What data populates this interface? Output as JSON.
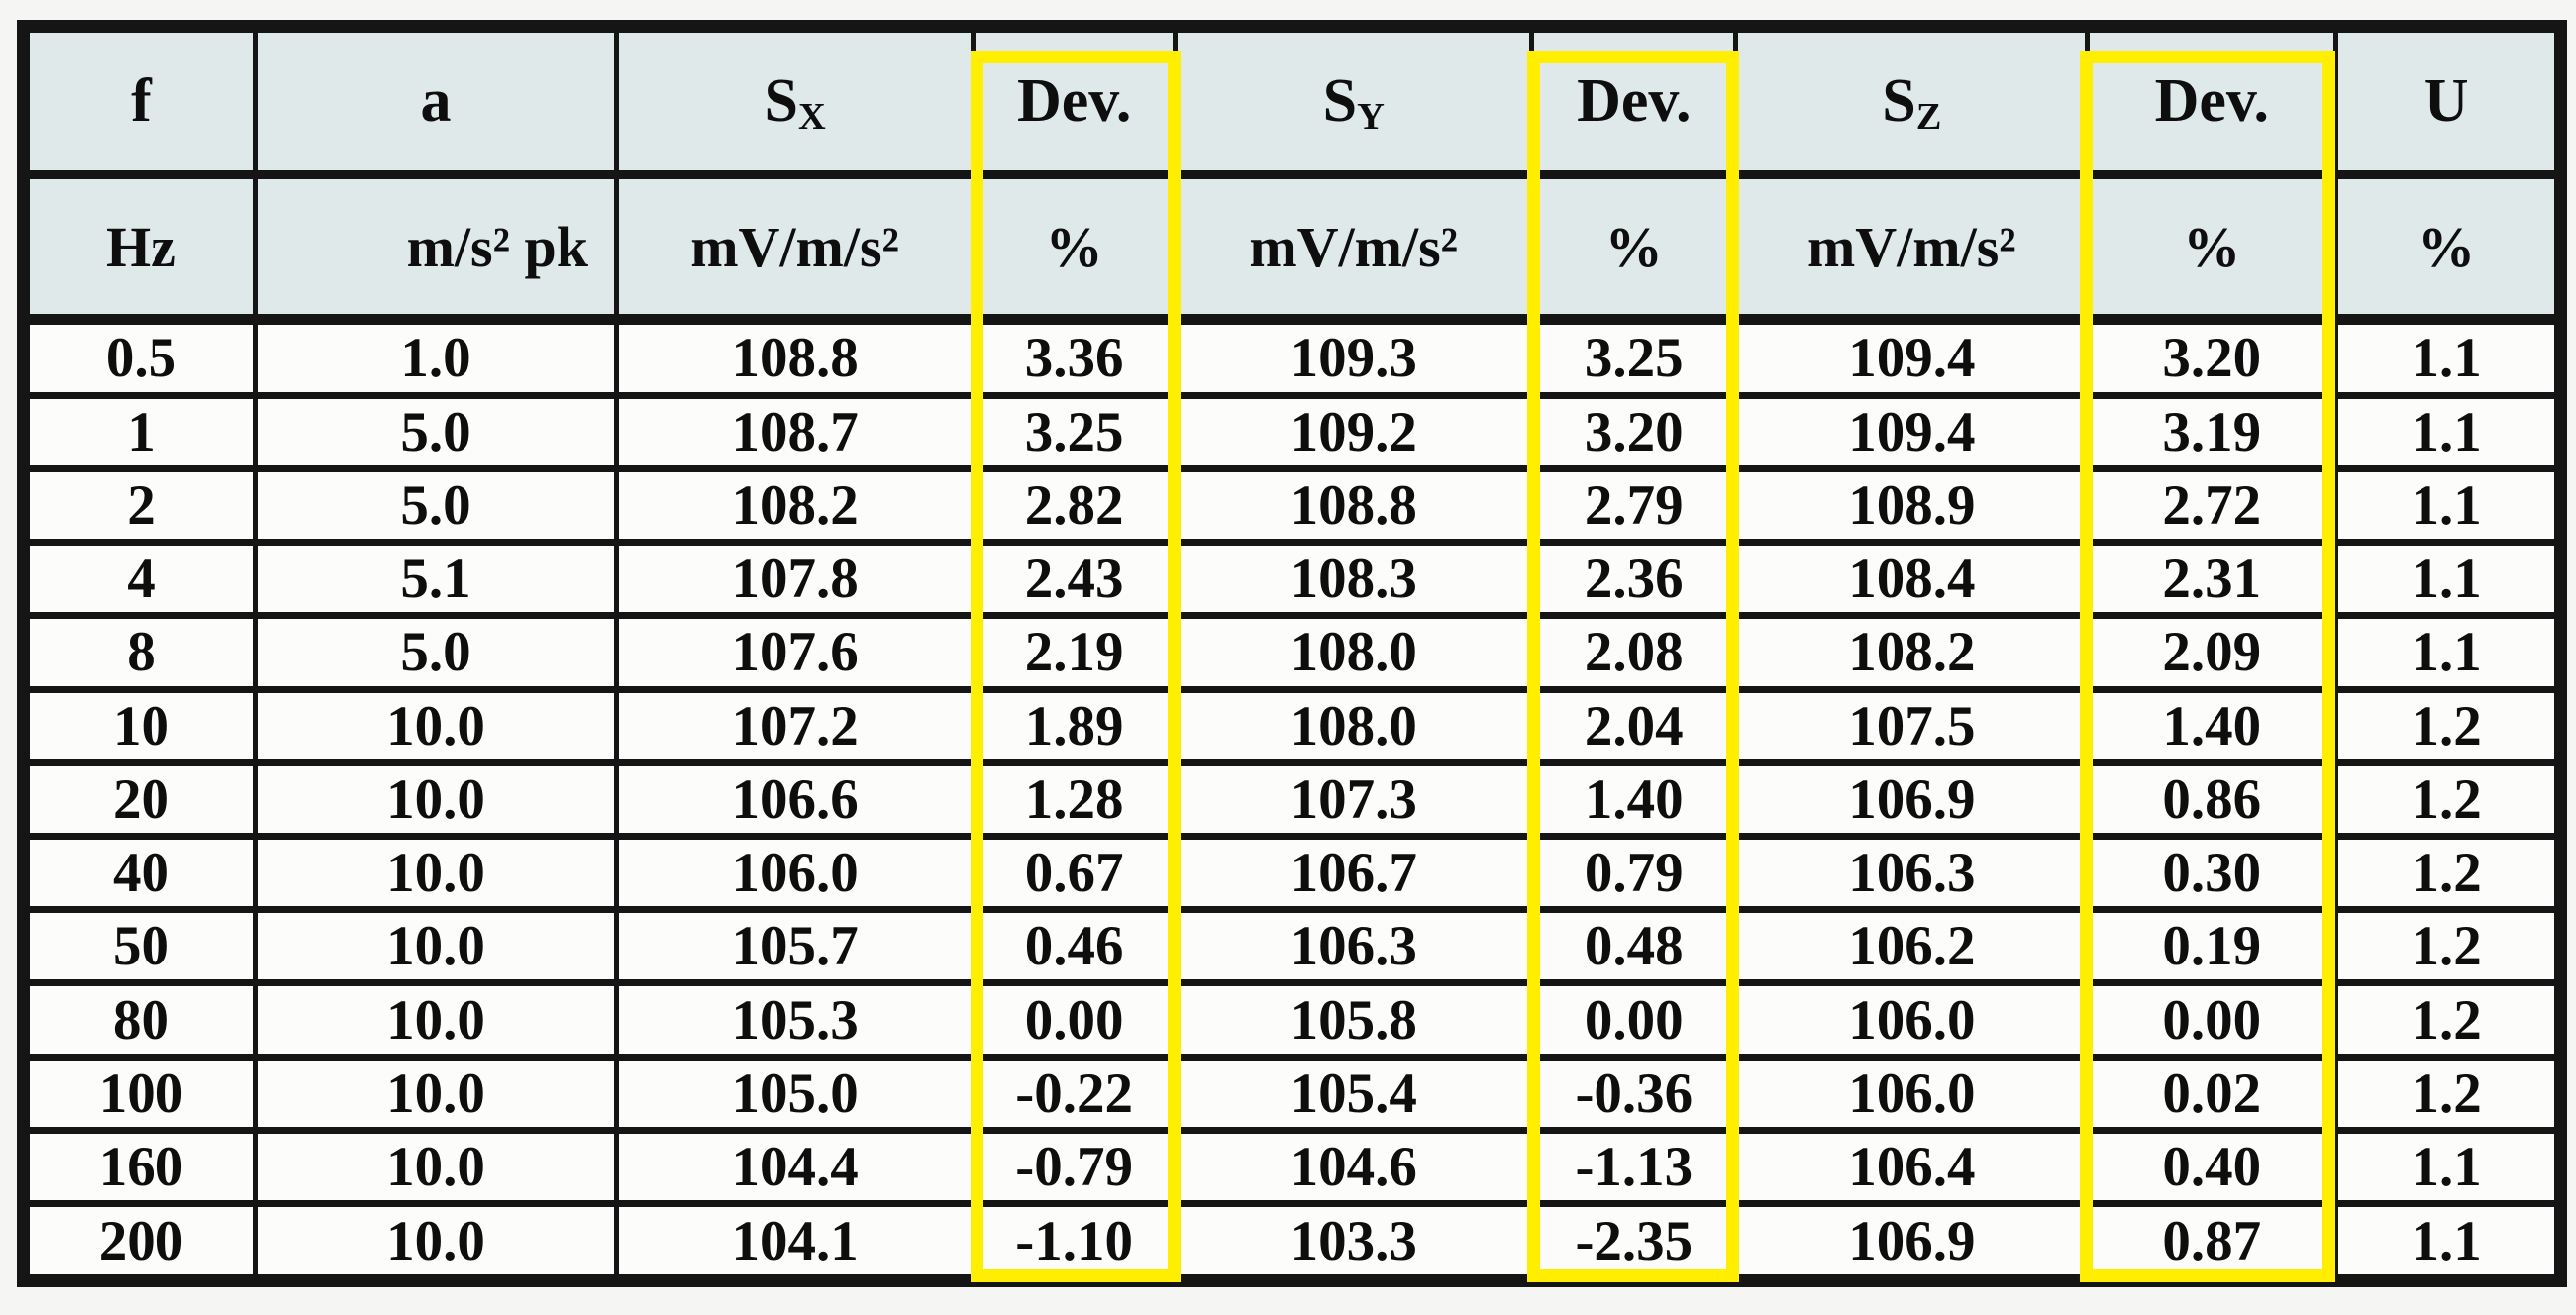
{
  "style": {
    "paper_bg": "#f5f5f3",
    "header_bg": "#e0e9e9",
    "cell_bg": "#fcfcfa",
    "line_color": "#151515",
    "highlight_color": "#ffee00",
    "text_color": "#0e0e0e"
  },
  "table": {
    "columns": [
      {
        "id": "f",
        "label": "f",
        "sub": "",
        "unit": "Hz",
        "width_pct": 9.13,
        "highlight": false,
        "unit_align": "center"
      },
      {
        "id": "a",
        "label": "a",
        "sub": "",
        "unit": "m/s² pk",
        "width_pct": 14.25,
        "highlight": false,
        "unit_align": "right"
      },
      {
        "id": "sx",
        "label": "S",
        "sub": "X",
        "unit": "mV/m/s²",
        "width_pct": 14.06,
        "highlight": false,
        "unit_align": "center"
      },
      {
        "id": "dev-x",
        "label": "Dev.",
        "sub": "",
        "unit": "%",
        "width_pct": 7.96,
        "highlight": true,
        "unit_align": "center"
      },
      {
        "id": "sy",
        "label": "S",
        "sub": "Y",
        "unit": "mV/m/s²",
        "width_pct": 14.06,
        "highlight": false,
        "unit_align": "center"
      },
      {
        "id": "dev-y",
        "label": "Dev.",
        "sub": "",
        "unit": "%",
        "width_pct": 8.04,
        "highlight": true,
        "unit_align": "center"
      },
      {
        "id": "sz",
        "label": "S",
        "sub": "Z",
        "unit": "mV/m/s²",
        "width_pct": 13.86,
        "highlight": false,
        "unit_align": "center"
      },
      {
        "id": "dev-z",
        "label": "Dev.",
        "sub": "",
        "unit": "%",
        "width_pct": 9.79,
        "highlight": true,
        "unit_align": "center"
      },
      {
        "id": "u",
        "label": "U",
        "sub": "",
        "unit": "%",
        "width_pct": 8.85,
        "highlight": false,
        "unit_align": "center"
      }
    ],
    "rows": [
      [
        "0.5",
        "1.0",
        "108.8",
        "3.36",
        "109.3",
        "3.25",
        "109.4",
        "3.20",
        "1.1"
      ],
      [
        "1",
        "5.0",
        "108.7",
        "3.25",
        "109.2",
        "3.20",
        "109.4",
        "3.19",
        "1.1"
      ],
      [
        "2",
        "5.0",
        "108.2",
        "2.82",
        "108.8",
        "2.79",
        "108.9",
        "2.72",
        "1.1"
      ],
      [
        "4",
        "5.1",
        "107.8",
        "2.43",
        "108.3",
        "2.36",
        "108.4",
        "2.31",
        "1.1"
      ],
      [
        "8",
        "5.0",
        "107.6",
        "2.19",
        "108.0",
        "2.08",
        "108.2",
        "2.09",
        "1.1"
      ],
      [
        "10",
        "10.0",
        "107.2",
        "1.89",
        "108.0",
        "2.04",
        "107.5",
        "1.40",
        "1.2"
      ],
      [
        "20",
        "10.0",
        "106.6",
        "1.28",
        "107.3",
        "1.40",
        "106.9",
        "0.86",
        "1.2"
      ],
      [
        "40",
        "10.0",
        "106.0",
        "0.67",
        "106.7",
        "0.79",
        "106.3",
        "0.30",
        "1.2"
      ],
      [
        "50",
        "10.0",
        "105.7",
        "0.46",
        "106.3",
        "0.48",
        "106.2",
        "0.19",
        "1.2"
      ],
      [
        "80",
        "10.0",
        "105.3",
        "0.00",
        "105.8",
        "0.00",
        "106.0",
        "0.00",
        "1.2"
      ],
      [
        "100",
        "10.0",
        "105.0",
        "-0.22",
        "105.4",
        "-0.36",
        "106.0",
        "0.02",
        "1.2"
      ],
      [
        "160",
        "10.0",
        "104.4",
        "-0.79",
        "104.6",
        "-1.13",
        "106.4",
        "0.40",
        "1.1"
      ],
      [
        "200",
        "10.0",
        "104.1",
        "-1.10",
        "103.3",
        "-2.35",
        "106.9",
        "0.87",
        "1.1"
      ]
    ]
  }
}
